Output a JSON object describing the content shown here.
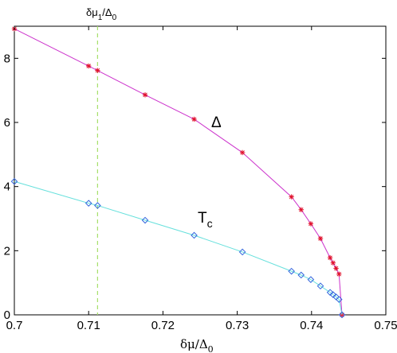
{
  "chart_data": {
    "type": "line",
    "title": "",
    "xlabel": "δμ/Δ",
    "xlabel_sub": "0",
    "ylabel": "",
    "xlim": [
      0.7,
      0.75
    ],
    "ylim": [
      0,
      9
    ],
    "xticks": [
      0.7,
      0.71,
      0.72,
      0.73,
      0.74,
      0.75
    ],
    "xtick_labels": [
      "0.7",
      "0.71",
      "0.72",
      "0.73",
      "0.74",
      "0.75"
    ],
    "yticks": [
      0,
      2,
      4,
      6,
      8
    ],
    "ytick_labels": [
      "0",
      "2",
      "4",
      "6",
      "8"
    ],
    "grid": false,
    "vline": {
      "x": 0.7112,
      "color": "#a6e06a",
      "label_main": "δμ",
      "label_sub1": "1",
      "label_mid": "/Δ",
      "label_sub2": "0"
    },
    "series": [
      {
        "name": "Δ",
        "color": "#cc33cc",
        "marker": "star",
        "marker_color": "#e0102a",
        "x": [
          0.7,
          0.71,
          0.7112,
          0.7176,
          0.7242,
          0.7307,
          0.7373,
          0.7386,
          0.7399,
          0.7412,
          0.7425,
          0.7429,
          0.7433,
          0.7437,
          0.7441
        ],
        "y": [
          8.92,
          7.76,
          7.62,
          6.86,
          6.1,
          5.06,
          3.68,
          3.28,
          2.84,
          2.38,
          1.78,
          1.62,
          1.45,
          1.27,
          0.0
        ]
      },
      {
        "name": "T",
        "name_sub": "c",
        "color": "#66e0dc",
        "marker": "diamond",
        "marker_color": "#3366dd",
        "x": [
          0.7,
          0.71,
          0.7112,
          0.7176,
          0.7242,
          0.7307,
          0.7373,
          0.7386,
          0.7399,
          0.7412,
          0.7425,
          0.7429,
          0.7433,
          0.7437,
          0.7441
        ],
        "y": [
          4.16,
          3.48,
          3.41,
          2.95,
          2.48,
          1.96,
          1.36,
          1.24,
          1.1,
          0.9,
          0.7,
          0.63,
          0.56,
          0.48,
          0.0
        ]
      }
    ]
  }
}
